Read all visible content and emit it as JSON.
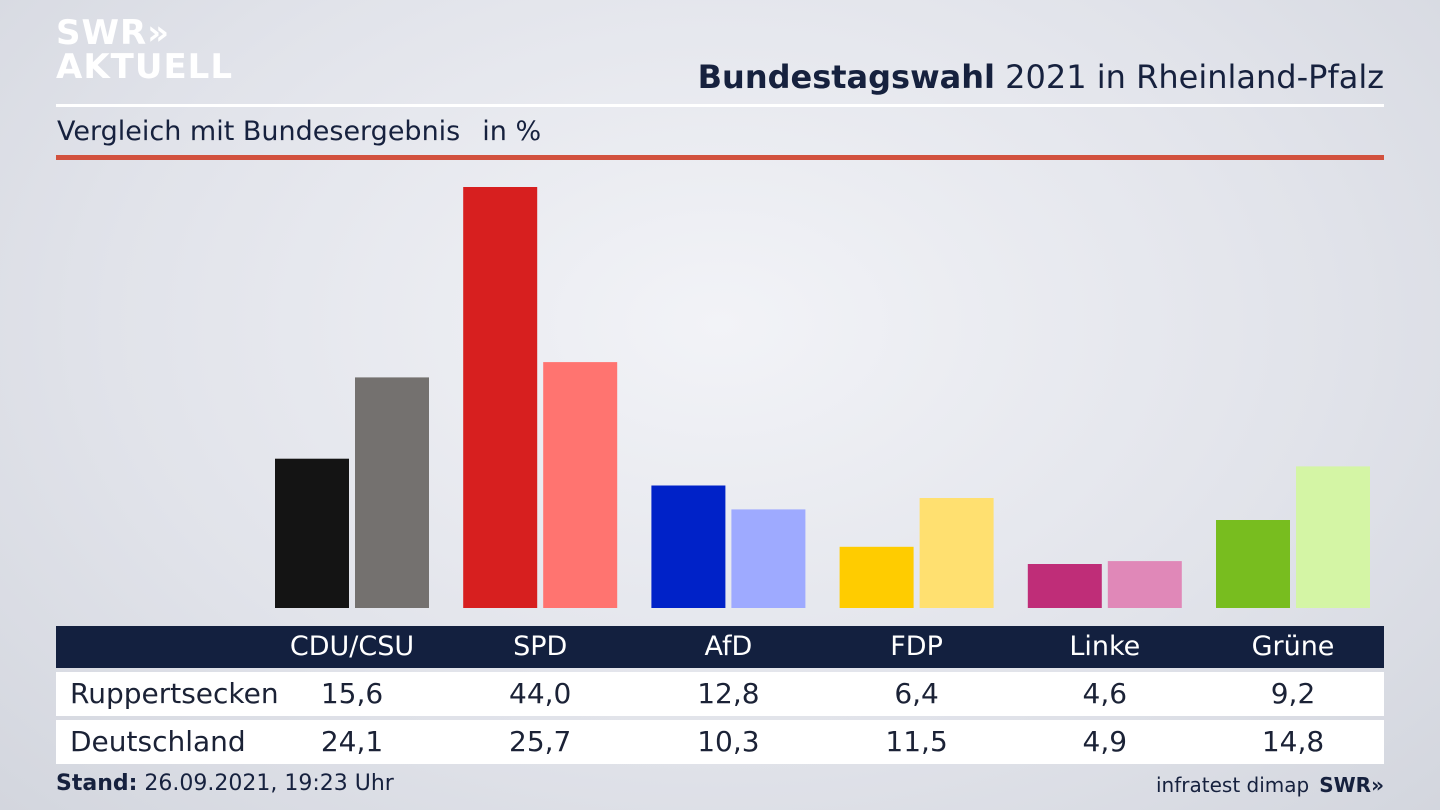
{
  "logo": {
    "line1": "SWR»",
    "line2": "AKTUELL"
  },
  "headline": {
    "bold": "Bundestagswahl",
    "rest": " 2021 in Rheinland-Pfalz"
  },
  "subtitle": {
    "text": "Vergleich mit Bundesergebnis",
    "unit": "in %"
  },
  "colors": {
    "accent_red_rule": "#d2513e",
    "header_bg": "#13203f"
  },
  "chart_data": {
    "type": "bar",
    "categories": [
      "CDU/CSU",
      "SPD",
      "AfD",
      "FDP",
      "Linke",
      "Grüne"
    ],
    "series": [
      {
        "name": "Ruppertsecken",
        "values": [
          15.6,
          44.0,
          12.8,
          6.4,
          4.6,
          9.2
        ],
        "colors": [
          "#141414",
          "#d71f1f",
          "#0022c8",
          "#ffcc00",
          "#bf2d78",
          "#78bd1f"
        ]
      },
      {
        "name": "Deutschland",
        "values": [
          24.1,
          25.7,
          10.3,
          11.5,
          4.9,
          14.8
        ],
        "colors": [
          "#74716f",
          "#ff7470",
          "#9eaaff",
          "#ffe070",
          "#e088b8",
          "#d4f5a5"
        ]
      }
    ],
    "display_values": {
      "Ruppertsecken": [
        "15,6",
        "44,0",
        "12,8",
        "6,4",
        "4,6",
        "9,2"
      ],
      "Deutschland": [
        "24,1",
        "25,7",
        "10,3",
        "11,5",
        "4,9",
        "14,8"
      ]
    },
    "ylim": [
      0,
      44
    ],
    "grid": false
  },
  "footer": {
    "stand_label": "Stand:",
    "stand_value": " 26.09.2021, 19:23 Uhr",
    "source": "infratest dimap",
    "brand": "SWR»"
  }
}
